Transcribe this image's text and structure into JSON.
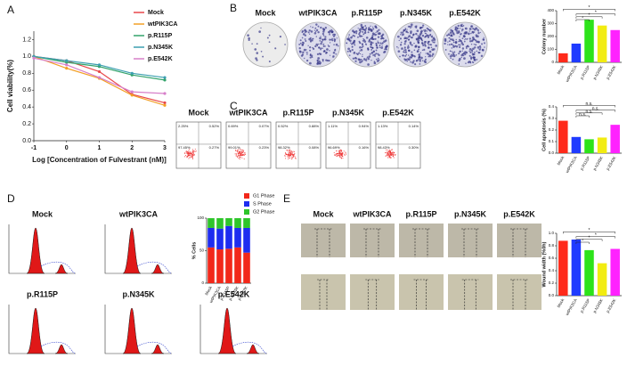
{
  "panel_labels": [
    "A",
    "B",
    "C",
    "D",
    "E"
  ],
  "chart_data": [
    {
      "type": "line",
      "x_label": "Log [Concentration of Fulvestrant (nM)]",
      "y_label": "Cell viability(%)",
      "x": [
        -1,
        0,
        1,
        2,
        3
      ],
      "xlim": [
        -1,
        3
      ],
      "xticks": [
        -1,
        0,
        1,
        2,
        3
      ],
      "ylim": [
        0,
        1.3
      ],
      "yticks": [
        {
          "value": 0,
          "label": "0.0"
        },
        {
          "value": 0.2,
          "label": "0.2"
        },
        {
          "value": 0.4,
          "label": "0.4"
        },
        {
          "value": 0.6,
          "label": "0.6"
        },
        {
          "value": 0.8,
          "label": "0.8"
        },
        {
          "value": 1,
          "label": "1.0"
        },
        {
          "value": 1.2,
          "label": "1.2"
        }
      ],
      "series": [
        {
          "name": "Mock",
          "color": "#e8474a",
          "values": [
            1.0,
            0.95,
            0.82,
            0.55,
            0.45
          ]
        },
        {
          "name": "wtPIK3CA",
          "color": "#f2a027",
          "values": [
            1.0,
            0.86,
            0.74,
            0.54,
            0.42
          ]
        },
        {
          "name": "p.R115P",
          "color": "#33a36b",
          "values": [
            1.0,
            0.93,
            0.88,
            0.78,
            0.72
          ]
        },
        {
          "name": "p.N345K",
          "color": "#3c9fb0",
          "values": [
            1.0,
            0.95,
            0.9,
            0.8,
            0.75
          ]
        },
        {
          "name": "p.E542K",
          "color": "#d77fc9",
          "values": [
            0.98,
            0.9,
            0.75,
            0.58,
            0.56
          ]
        }
      ]
    },
    {
      "type": "bar",
      "y_label": "Colony number",
      "categories": [
        "Mock",
        "wtPIK3CA",
        "p.R115P",
        "p.N345K",
        "p.E542K"
      ],
      "values": [
        70,
        145,
        330,
        285,
        250
      ],
      "colors": [
        "#ff2a1a",
        "#1f3bff",
        "#2de31a",
        "#f2ec10",
        "#ff22ff"
      ],
      "ylim": [
        0,
        400
      ],
      "yticks": [
        0,
        100,
        200,
        300,
        400
      ],
      "annotations": [
        "*",
        "*",
        "*",
        "*"
      ]
    },
    {
      "type": "bar",
      "y_label": "Cell apoptosis (%)",
      "categories": [
        "Mock",
        "wtPIK3CA",
        "p.R115P",
        "p.N345K",
        "p.E542K"
      ],
      "values": [
        0.28,
        0.14,
        0.12,
        0.135,
        0.245
      ],
      "colors": [
        "#ff2a1a",
        "#1f3bff",
        "#2de31a",
        "#f2ec10",
        "#ff22ff"
      ],
      "ylim": [
        0,
        0.4
      ],
      "yticks": [
        {
          "value": 0,
          "label": "0.0"
        },
        {
          "value": 0.1,
          "label": "0.1"
        },
        {
          "value": 0.2,
          "label": "0.2"
        },
        {
          "value": 0.3,
          "label": "0.3"
        },
        {
          "value": 0.4,
          "label": "0.4"
        }
      ],
      "annotations": [
        "n.s.",
        "n.s.",
        "n.s.",
        "n.s."
      ]
    },
    {
      "type": "stacked_bar",
      "y_label": "% Cells",
      "categories": [
        "Mock",
        "wtPIK3CA",
        "p.R115P",
        "p.N345K",
        "p.E542K"
      ],
      "ylim": [
        0,
        100
      ],
      "yticks": [
        0,
        50,
        100
      ],
      "series": [
        {
          "name": "G1 Phase",
          "color": "#f2281a",
          "values": [
            55,
            52,
            53,
            55,
            47
          ]
        },
        {
          "name": "S Phase",
          "color": "#1e2cf0",
          "values": [
            30,
            32,
            35,
            30,
            38
          ]
        },
        {
          "name": "G2 Phase",
          "color": "#2ec52a",
          "values": [
            15,
            16,
            12,
            15,
            15
          ]
        }
      ]
    },
    {
      "type": "bar",
      "y_label": "Wound width (%0h)",
      "categories": [
        "Mock",
        "wtPIK3CA",
        "p.R115P",
        "p.N345K",
        "p.E542K"
      ],
      "values": [
        0.88,
        0.9,
        0.73,
        0.52,
        0.75
      ],
      "colors": [
        "#ff2a1a",
        "#1f3bff",
        "#2de31a",
        "#f2ec10",
        "#ff22ff"
      ],
      "ylim": [
        0,
        1.0
      ],
      "yticks": [
        {
          "value": 0,
          "label": "0.0"
        },
        {
          "value": 0.2,
          "label": "0.2"
        },
        {
          "value": 0.4,
          "label": "0.4"
        },
        {
          "value": 0.6,
          "label": "0.6"
        },
        {
          "value": 0.8,
          "label": "0.8"
        },
        {
          "value": 1,
          "label": "1.0"
        }
      ],
      "annotations": [
        "*",
        "*",
        "*",
        "*"
      ]
    }
  ],
  "colony_panel": {
    "labels": [
      "Mock",
      "wtPIK3CA",
      "p.R115P",
      "p.N345K",
      "p.E542K"
    ]
  },
  "flow_panel": {
    "labels": [
      "Mock",
      "wtPIK3CA",
      "p.R115P",
      "p.N345K",
      "p.E542K"
    ],
    "quadrants": [
      [
        "2.25%",
        "0.52%",
        "97.45%",
        "0.27%"
      ],
      [
        "0.69%",
        "0.07%",
        "99.01%",
        "0.23%"
      ],
      [
        "0.52%",
        "0.88%",
        "98.32%",
        "0.08%"
      ],
      [
        "1.11%",
        "0.94%",
        "96.69%",
        "0.16%"
      ],
      [
        "1.13%",
        "0.14%",
        "98.43%",
        "0.30%"
      ]
    ]
  },
  "cycle_panel": {
    "labels": [
      "Mock",
      "wtPIK3CA",
      "p.R115P",
      "p.N345K",
      "p.E542K"
    ]
  },
  "wound_panel": {
    "labels": [
      "Mock",
      "wtPIK3CA",
      "p.R115P",
      "p.N345K",
      "p.E542K"
    ]
  }
}
